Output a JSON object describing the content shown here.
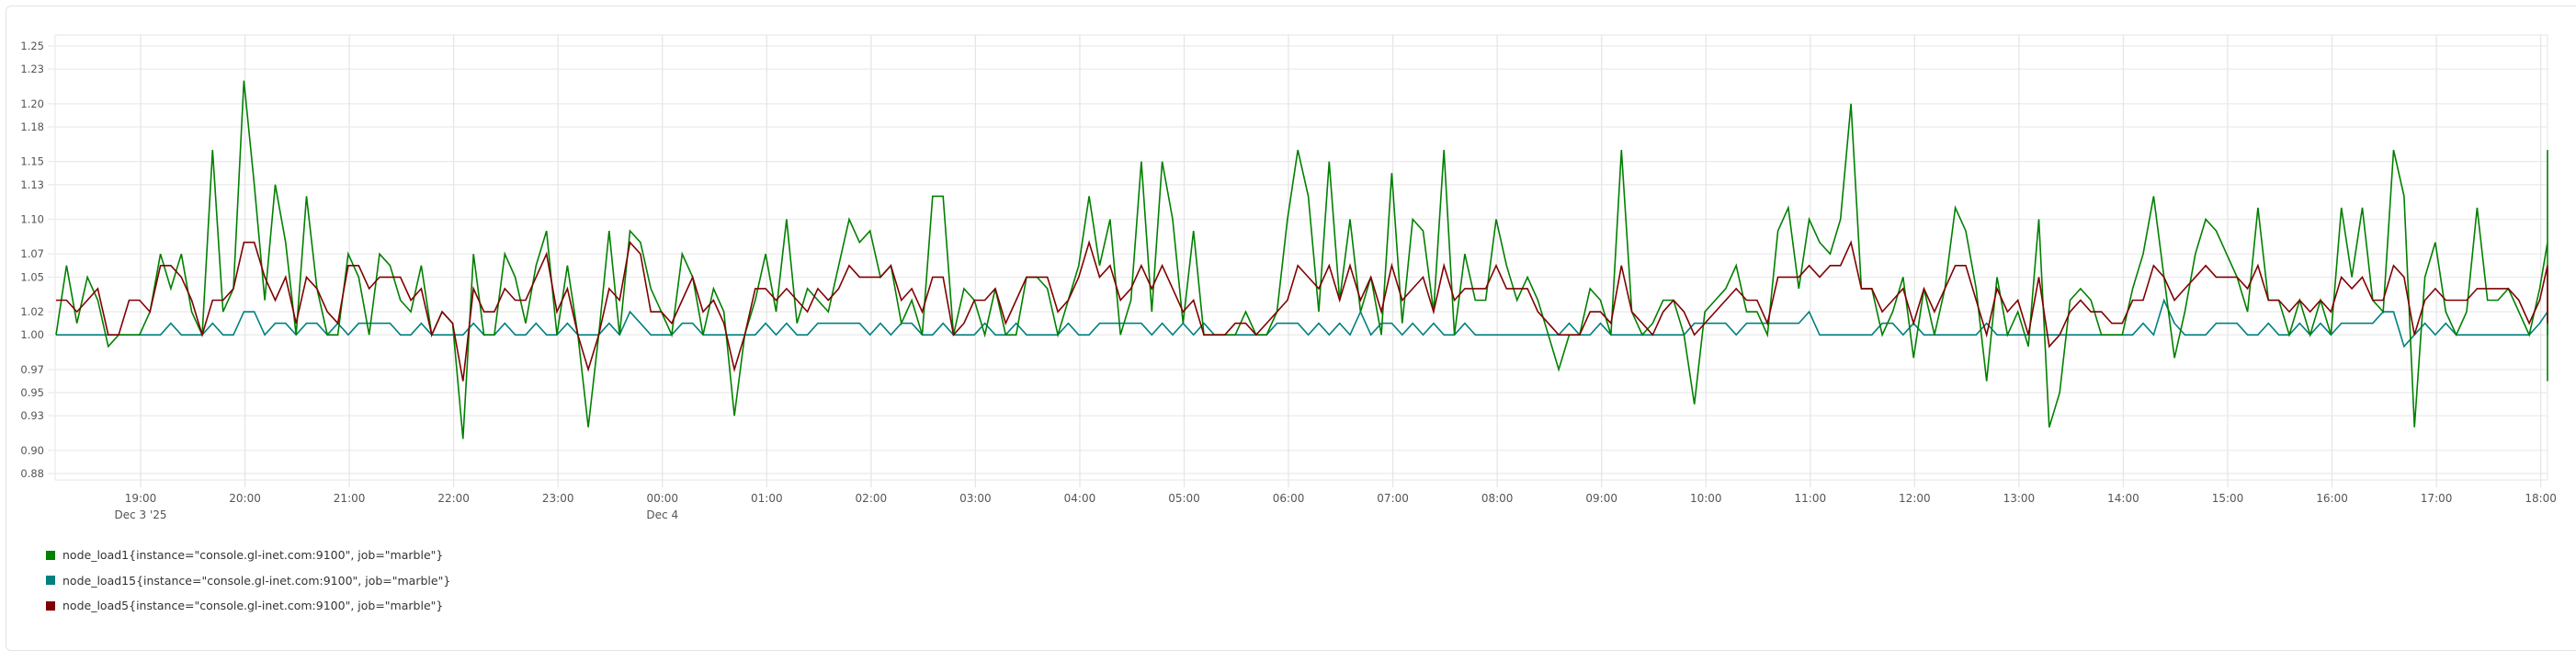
{
  "chart_data": {
    "type": "line",
    "title": "",
    "xlabel": "",
    "ylabel": "",
    "ylim": [
      0.88,
      1.25
    ],
    "yticks": [
      "1.25",
      "1.23",
      "1.20",
      "1.18",
      "1.15",
      "1.13",
      "1.10",
      "1.07",
      "1.05",
      "1.02",
      "1.00",
      "0.97",
      "0.95",
      "0.93",
      "0.90",
      "0.88"
    ],
    "xticks": [
      {
        "label": "19:00",
        "sub": "Dec 3 '25"
      },
      {
        "label": "20:00",
        "sub": ""
      },
      {
        "label": "21:00",
        "sub": ""
      },
      {
        "label": "22:00",
        "sub": ""
      },
      {
        "label": "23:00",
        "sub": ""
      },
      {
        "label": "00:00",
        "sub": "Dec 4"
      },
      {
        "label": "01:00",
        "sub": ""
      },
      {
        "label": "02:00",
        "sub": ""
      },
      {
        "label": "03:00",
        "sub": ""
      },
      {
        "label": "04:00",
        "sub": ""
      },
      {
        "label": "05:00",
        "sub": ""
      },
      {
        "label": "06:00",
        "sub": ""
      },
      {
        "label": "07:00",
        "sub": ""
      },
      {
        "label": "08:00",
        "sub": ""
      },
      {
        "label": "09:00",
        "sub": ""
      },
      {
        "label": "10:00",
        "sub": ""
      },
      {
        "label": "11:00",
        "sub": ""
      },
      {
        "label": "12:00",
        "sub": ""
      },
      {
        "label": "13:00",
        "sub": ""
      },
      {
        "label": "14:00",
        "sub": ""
      },
      {
        "label": "15:00",
        "sub": ""
      },
      {
        "label": "16:00",
        "sub": ""
      },
      {
        "label": "17:00",
        "sub": ""
      },
      {
        "label": "18:00",
        "sub": ""
      }
    ],
    "grid": true,
    "legend_position": "bottom",
    "x_start": "Dec 3 18:11",
    "x_step_minutes": 6,
    "series": [
      {
        "name": "node_load1{instance=\"console.gl-inet.com:9100\", job=\"marble\"}",
        "color": "#008000",
        "values": [
          1.0,
          1.06,
          1.01,
          1.05,
          1.03,
          0.99,
          1.0,
          1.0,
          1.0,
          1.02,
          1.07,
          1.04,
          1.07,
          1.02,
          1.0,
          1.16,
          1.02,
          1.04,
          1.22,
          1.13,
          1.03,
          1.13,
          1.08,
          1.0,
          1.12,
          1.04,
          1.0,
          1.0,
          1.07,
          1.05,
          1.0,
          1.07,
          1.06,
          1.03,
          1.02,
          1.06,
          1.0,
          1.02,
          1.01,
          0.91,
          1.07,
          1.0,
          1.0,
          1.07,
          1.05,
          1.01,
          1.06,
          1.09,
          1.0,
          1.06,
          1.0,
          0.92,
          1.0,
          1.09,
          1.0,
          1.09,
          1.08,
          1.04,
          1.02,
          1.0,
          1.07,
          1.05,
          1.0,
          1.04,
          1.02,
          0.93,
          1.0,
          1.03,
          1.07,
          1.02,
          1.1,
          1.01,
          1.04,
          1.03,
          1.02,
          1.06,
          1.1,
          1.08,
          1.09,
          1.05,
          1.06,
          1.01,
          1.03,
          1.0,
          1.12,
          1.12,
          1.0,
          1.04,
          1.03,
          1.0,
          1.04,
          1.0,
          1.0,
          1.05,
          1.05,
          1.04,
          1.0,
          1.03,
          1.06,
          1.12,
          1.06,
          1.1,
          1.0,
          1.03,
          1.15,
          1.02,
          1.15,
          1.1,
          1.01,
          1.09,
          1.0,
          1.0,
          1.0,
          1.0,
          1.02,
          1.0,
          1.0,
          1.02,
          1.1,
          1.16,
          1.12,
          1.02,
          1.15,
          1.03,
          1.1,
          1.02,
          1.05,
          1.0,
          1.14,
          1.01,
          1.1,
          1.09,
          1.02,
          1.16,
          1.0,
          1.07,
          1.03,
          1.03,
          1.1,
          1.06,
          1.03,
          1.05,
          1.03,
          1.0,
          0.97,
          1.0,
          1.0,
          1.04,
          1.03,
          1.0,
          1.16,
          1.02,
          1.0,
          1.01,
          1.03,
          1.03,
          1.0,
          0.94,
          1.02,
          1.03,
          1.04,
          1.06,
          1.02,
          1.02,
          1.0,
          1.09,
          1.11,
          1.04,
          1.1,
          1.08,
          1.07,
          1.1,
          1.2,
          1.04,
          1.04,
          1.0,
          1.02,
          1.05,
          0.98,
          1.04,
          1.0,
          1.04,
          1.11,
          1.09,
          1.04,
          0.96,
          1.05,
          1.0,
          1.02,
          0.99,
          1.1,
          0.92,
          0.95,
          1.03,
          1.04,
          1.03,
          1.0,
          1.0,
          1.0,
          1.04,
          1.07,
          1.12,
          1.05,
          0.98,
          1.02,
          1.07,
          1.1,
          1.09,
          1.07,
          1.05,
          1.02,
          1.11,
          1.03,
          1.03,
          1.0,
          1.03,
          1.0,
          1.03,
          1.0,
          1.11,
          1.05,
          1.11,
          1.03,
          1.02,
          1.16,
          1.12,
          0.92,
          1.05,
          1.08,
          1.02,
          1.0,
          1.02,
          1.11,
          1.03,
          1.03,
          1.04,
          1.02,
          1.0,
          1.04,
          1.08,
          1.04,
          0.96,
          1.03,
          1.03,
          1.07,
          1.03,
          1.02,
          1.0,
          1.02,
          1.05,
          1.0,
          1.09,
          1.16
        ]
      },
      {
        "name": "node_load15{instance=\"console.gl-inet.com:9100\", job=\"marble\"}",
        "color": "#008080",
        "values": [
          1.0,
          1.0,
          1.0,
          1.0,
          1.0,
          1.0,
          1.0,
          1.0,
          1.0,
          1.0,
          1.0,
          1.01,
          1.0,
          1.0,
          1.0,
          1.01,
          1.0,
          1.0,
          1.02,
          1.02,
          1.0,
          1.01,
          1.01,
          1.0,
          1.01,
          1.01,
          1.0,
          1.01,
          1.0,
          1.01,
          1.01,
          1.01,
          1.01,
          1.0,
          1.0,
          1.01,
          1.0,
          1.0,
          1.0,
          1.0,
          1.01,
          1.0,
          1.0,
          1.01,
          1.0,
          1.0,
          1.01,
          1.0,
          1.0,
          1.01,
          1.0,
          1.0,
          1.0,
          1.01,
          1.0,
          1.02,
          1.01,
          1.0,
          1.0,
          1.0,
          1.01,
          1.01,
          1.0,
          1.0,
          1.0,
          1.0,
          1.0,
          1.0,
          1.01,
          1.0,
          1.01,
          1.0,
          1.0,
          1.01,
          1.01,
          1.01,
          1.01,
          1.01,
          1.0,
          1.01,
          1.0,
          1.01,
          1.01,
          1.0,
          1.0,
          1.01,
          1.0,
          1.0,
          1.0,
          1.01,
          1.0,
          1.0,
          1.01,
          1.0,
          1.0,
          1.0,
          1.0,
          1.01,
          1.0,
          1.0,
          1.01,
          1.01,
          1.01,
          1.01,
          1.01,
          1.0,
          1.01,
          1.0,
          1.01,
          1.0,
          1.01,
          1.0,
          1.0,
          1.0,
          1.0,
          1.0,
          1.0,
          1.01,
          1.01,
          1.01,
          1.0,
          1.01,
          1.0,
          1.01,
          1.0,
          1.02,
          1.0,
          1.01,
          1.01,
          1.0,
          1.01,
          1.0,
          1.01,
          1.0,
          1.0,
          1.01,
          1.0,
          1.0,
          1.0,
          1.0,
          1.0,
          1.0,
          1.0,
          1.0,
          1.0,
          1.01,
          1.0,
          1.0,
          1.01,
          1.0,
          1.0,
          1.0,
          1.0,
          1.0,
          1.0,
          1.0,
          1.0,
          1.01,
          1.01,
          1.01,
          1.01,
          1.0,
          1.01,
          1.01,
          1.01,
          1.01,
          1.01,
          1.01,
          1.02,
          1.0,
          1.0,
          1.0,
          1.0,
          1.0,
          1.0,
          1.01,
          1.01,
          1.0,
          1.01,
          1.0,
          1.0,
          1.0,
          1.0,
          1.0,
          1.0,
          1.01,
          1.0,
          1.0,
          1.0,
          1.0,
          1.0,
          1.0,
          1.0,
          1.0,
          1.0,
          1.0,
          1.0,
          1.0,
          1.0,
          1.0,
          1.01,
          1.0,
          1.03,
          1.01,
          1.0,
          1.0,
          1.0,
          1.01,
          1.01,
          1.01,
          1.0,
          1.0,
          1.01,
          1.0,
          1.0,
          1.01,
          1.0,
          1.01,
          1.0,
          1.01,
          1.01,
          1.01,
          1.01,
          1.02,
          1.02,
          0.99,
          1.0,
          1.01,
          1.0,
          1.01,
          1.0,
          1.0,
          1.0,
          1.0,
          1.0,
          1.0,
          1.0,
          1.0,
          1.01,
          1.02,
          1.01,
          1.0,
          1.0,
          1.0,
          1.0,
          1.0,
          1.0,
          1.0,
          1.0,
          1.0,
          1.0,
          1.01,
          1.01
        ]
      },
      {
        "name": "node_load5{instance=\"console.gl-inet.com:9100\", job=\"marble\"}",
        "color": "#800000",
        "values": [
          1.03,
          1.03,
          1.02,
          1.03,
          1.04,
          1.0,
          1.0,
          1.03,
          1.03,
          1.02,
          1.06,
          1.06,
          1.05,
          1.03,
          1.0,
          1.03,
          1.03,
          1.04,
          1.08,
          1.08,
          1.05,
          1.03,
          1.05,
          1.01,
          1.05,
          1.04,
          1.02,
          1.01,
          1.06,
          1.06,
          1.04,
          1.05,
          1.05,
          1.05,
          1.03,
          1.04,
          1.0,
          1.02,
          1.01,
          0.96,
          1.04,
          1.02,
          1.02,
          1.04,
          1.03,
          1.03,
          1.05,
          1.07,
          1.02,
          1.04,
          1.0,
          0.97,
          1.0,
          1.04,
          1.03,
          1.08,
          1.07,
          1.02,
          1.02,
          1.01,
          1.03,
          1.05,
          1.02,
          1.03,
          1.01,
          0.97,
          1.0,
          1.04,
          1.04,
          1.03,
          1.04,
          1.03,
          1.02,
          1.04,
          1.03,
          1.04,
          1.06,
          1.05,
          1.05,
          1.05,
          1.06,
          1.03,
          1.04,
          1.02,
          1.05,
          1.05,
          1.0,
          1.01,
          1.03,
          1.03,
          1.04,
          1.01,
          1.03,
          1.05,
          1.05,
          1.05,
          1.02,
          1.03,
          1.05,
          1.08,
          1.05,
          1.06,
          1.03,
          1.04,
          1.06,
          1.04,
          1.06,
          1.04,
          1.02,
          1.03,
          1.0,
          1.0,
          1.0,
          1.01,
          1.01,
          1.0,
          1.01,
          1.02,
          1.03,
          1.06,
          1.05,
          1.04,
          1.06,
          1.03,
          1.06,
          1.03,
          1.05,
          1.02,
          1.06,
          1.03,
          1.04,
          1.05,
          1.02,
          1.06,
          1.03,
          1.04,
          1.04,
          1.04,
          1.06,
          1.04,
          1.04,
          1.04,
          1.02,
          1.01,
          1.0,
          1.0,
          1.0,
          1.02,
          1.02,
          1.01,
          1.06,
          1.02,
          1.01,
          1.0,
          1.02,
          1.03,
          1.02,
          1.0,
          1.01,
          1.02,
          1.03,
          1.04,
          1.03,
          1.03,
          1.01,
          1.05,
          1.05,
          1.05,
          1.06,
          1.05,
          1.06,
          1.06,
          1.08,
          1.04,
          1.04,
          1.02,
          1.03,
          1.04,
          1.01,
          1.04,
          1.02,
          1.04,
          1.06,
          1.06,
          1.03,
          1.0,
          1.04,
          1.02,
          1.03,
          1.0,
          1.05,
          0.99,
          1.0,
          1.02,
          1.03,
          1.02,
          1.02,
          1.01,
          1.01,
          1.03,
          1.03,
          1.06,
          1.05,
          1.03,
          1.04,
          1.05,
          1.06,
          1.05,
          1.05,
          1.05,
          1.04,
          1.06,
          1.03,
          1.03,
          1.02,
          1.03,
          1.02,
          1.03,
          1.02,
          1.05,
          1.04,
          1.05,
          1.03,
          1.03,
          1.06,
          1.05,
          1.0,
          1.03,
          1.04,
          1.03,
          1.03,
          1.03,
          1.04,
          1.04,
          1.04,
          1.04,
          1.03,
          1.01,
          1.03,
          1.06,
          1.05,
          1.03,
          1.04,
          1.04,
          1.05,
          1.04,
          1.04,
          1.03,
          1.03,
          1.04,
          1.01,
          1.05,
          1.04
        ]
      }
    ]
  },
  "legend": {
    "items": [
      {
        "label": "node_load1{instance=\"console.gl-inet.com:9100\", job=\"marble\"}",
        "color": "#008000"
      },
      {
        "label": "node_load15{instance=\"console.gl-inet.com:9100\", job=\"marble\"}",
        "color": "#008080"
      },
      {
        "label": "node_load5{instance=\"console.gl-inet.com:9100\", job=\"marble\"}",
        "color": "#800000"
      }
    ]
  }
}
